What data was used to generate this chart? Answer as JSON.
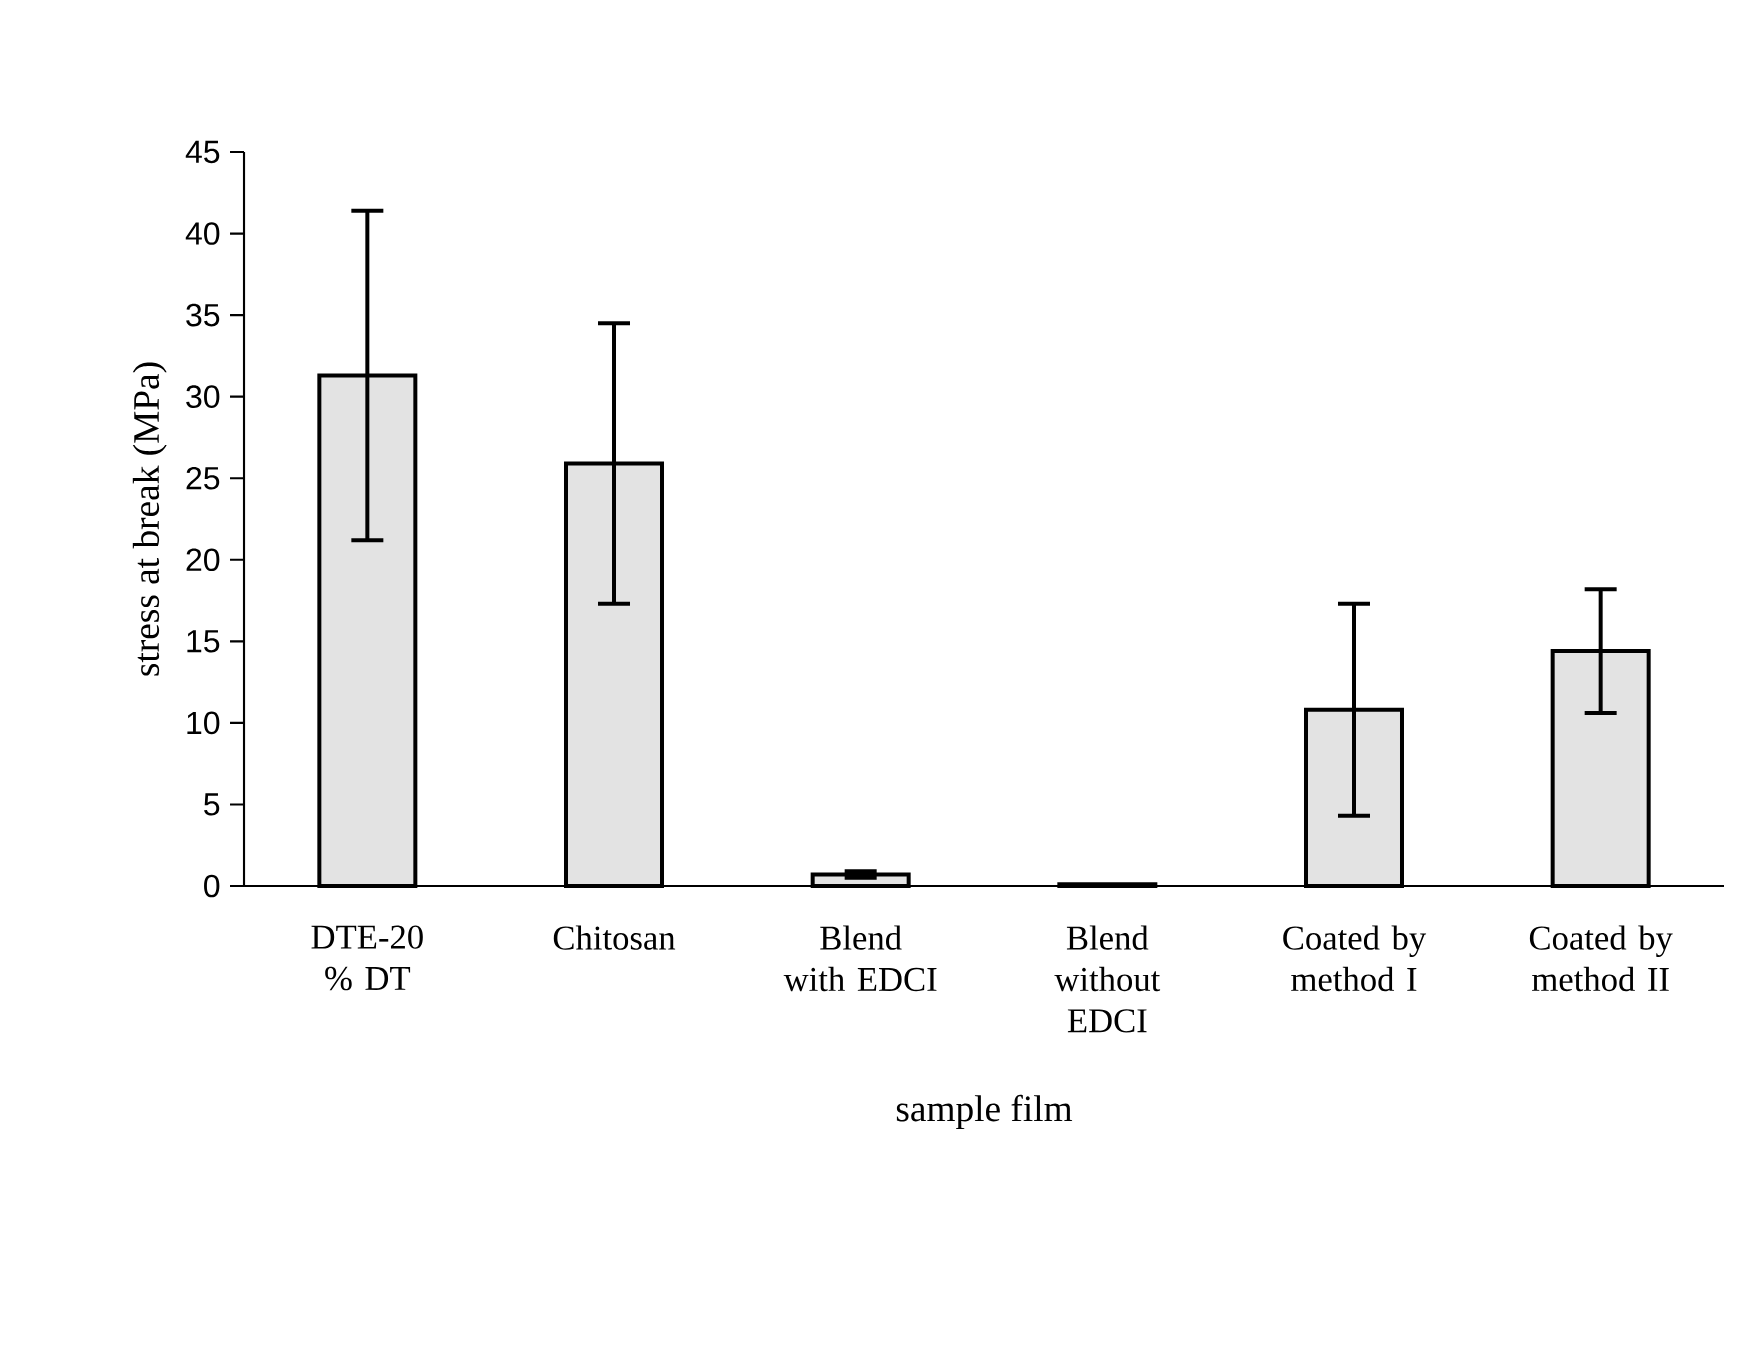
{
  "chart_data": {
    "type": "bar",
    "xlabel": "sample film",
    "ylabel": "stress at break (MPa)",
    "categories": [
      "DTE-20 % DT",
      "Chitosan",
      "Blend with EDCI",
      "Blend without EDCI",
      "Coated by method I",
      "Coated by method II"
    ],
    "values": [
      31.3,
      25.9,
      0.7,
      0.1,
      10.8,
      14.4
    ],
    "errors": [
      10.1,
      8.6,
      0.2,
      null,
      6.5,
      3.8
    ],
    "color": "#e3e3e3",
    "ylim": [
      0,
      45
    ],
    "yticks": [
      0,
      5,
      10,
      15,
      20,
      25,
      30,
      35,
      40,
      45
    ]
  }
}
